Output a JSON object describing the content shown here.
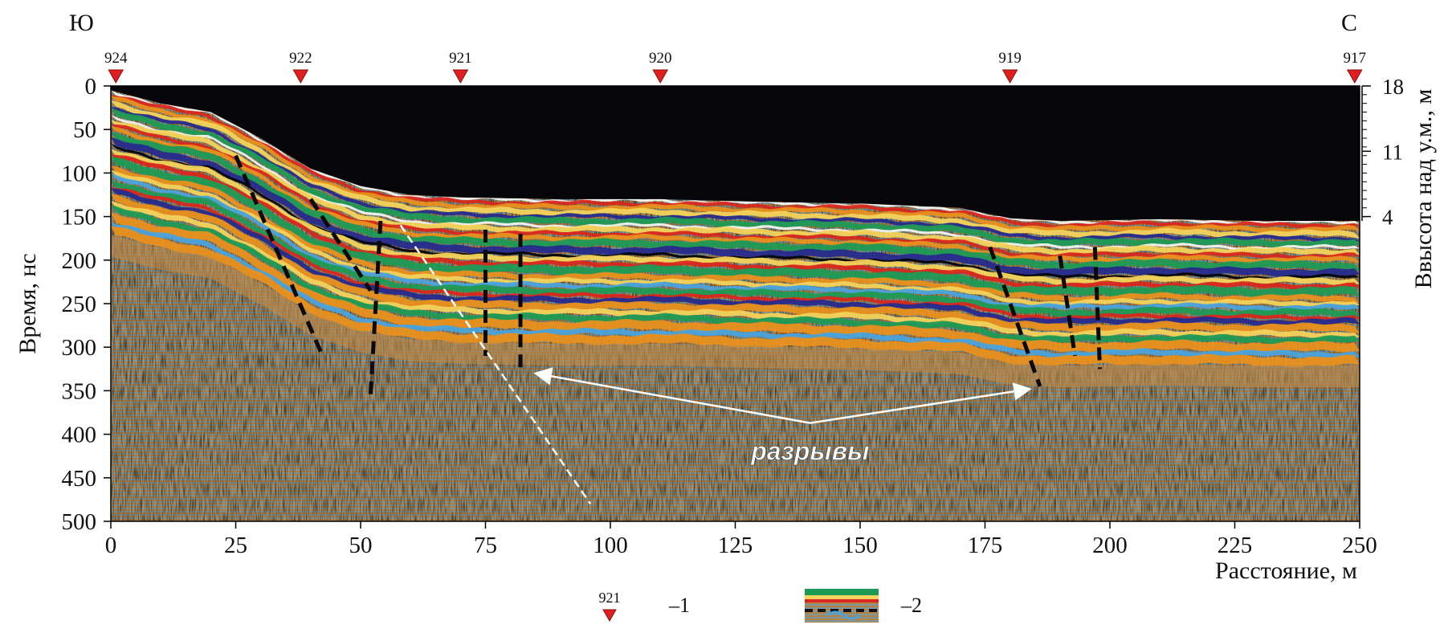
{
  "chart_data": {
    "type": "heatmap",
    "title": "",
    "direction_left": "Ю",
    "direction_right": "С",
    "xlabel": "Расстояние, м",
    "ylabel": "Время, нс",
    "y2label": "Ввысота над у.м., м",
    "xlim": [
      0,
      250
    ],
    "ylim": [
      0,
      500
    ],
    "xticks": [
      "0",
      "25",
      "50",
      "75",
      "100",
      "125",
      "150",
      "175",
      "200",
      "225",
      "250"
    ],
    "yticks": [
      "0",
      "50",
      "100",
      "150",
      "200",
      "250",
      "300",
      "350",
      "400",
      "450",
      "500"
    ],
    "y2ticks": [
      {
        "label": "18",
        "time": 0
      },
      {
        "label": "11",
        "time": 75
      },
      {
        "label": "4",
        "time": 150
      }
    ],
    "stations": [
      {
        "label": "924",
        "x": 1
      },
      {
        "label": "922",
        "x": 38
      },
      {
        "label": "921",
        "x": 70
      },
      {
        "label": "920",
        "x": 110
      },
      {
        "label": "919",
        "x": 180
      },
      {
        "label": "917",
        "x": 249
      }
    ],
    "surface_profile": [
      {
        "x": 0,
        "t": 5
      },
      {
        "x": 10,
        "t": 20
      },
      {
        "x": 20,
        "t": 30
      },
      {
        "x": 30,
        "t": 60
      },
      {
        "x": 40,
        "t": 95
      },
      {
        "x": 50,
        "t": 115
      },
      {
        "x": 60,
        "t": 125
      },
      {
        "x": 70,
        "t": 128
      },
      {
        "x": 90,
        "t": 130
      },
      {
        "x": 110,
        "t": 130
      },
      {
        "x": 130,
        "t": 133
      },
      {
        "x": 150,
        "t": 135
      },
      {
        "x": 170,
        "t": 140
      },
      {
        "x": 180,
        "t": 152
      },
      {
        "x": 190,
        "t": 155
      },
      {
        "x": 210,
        "t": 153
      },
      {
        "x": 230,
        "t": 155
      },
      {
        "x": 250,
        "t": 155
      }
    ],
    "faults": [
      {
        "x1": 25,
        "t1": 80,
        "x2": 42,
        "t2": 305
      },
      {
        "x1": 40,
        "t1": 130,
        "x2": 52,
        "t2": 235
      },
      {
        "x1": 54,
        "t1": 155,
        "x2": 52,
        "t2": 355
      },
      {
        "x1": 75,
        "t1": 165,
        "x2": 75,
        "t2": 310
      },
      {
        "x1": 82,
        "t1": 170,
        "x2": 82,
        "t2": 325
      },
      {
        "x1": 176,
        "t1": 185,
        "x2": 186,
        "t2": 345
      },
      {
        "x1": 190,
        "t1": 195,
        "x2": 193,
        "t2": 310
      },
      {
        "x1": 197,
        "t1": 185,
        "x2": 198,
        "t2": 325
      }
    ],
    "inclined_reflector": [
      {
        "x": 58,
        "t": 160
      },
      {
        "x": 96,
        "t": 480
      }
    ],
    "annotation": {
      "text": "разрывы",
      "anchor": {
        "x": 140,
        "t": 400
      },
      "targets": [
        {
          "x": 85,
          "t": 330
        },
        {
          "x": 184,
          "t": 348
        }
      ]
    },
    "palette": {
      "black": "#05050a",
      "red": "#d8271e",
      "orange": "#e8901e",
      "yellow": "#f3d35b",
      "green": "#1f9a55",
      "navy": "#262a8c",
      "white": "#f2f2ee",
      "brown": "#b57a3a",
      "blue": "#4aa3dc",
      "cyan": "#6fd0e6"
    }
  },
  "legend": [
    {
      "symbol": "station-marker",
      "sample_label": "921",
      "label": "–1"
    },
    {
      "symbol": "radargram-swatch",
      "label": "–2"
    }
  ]
}
